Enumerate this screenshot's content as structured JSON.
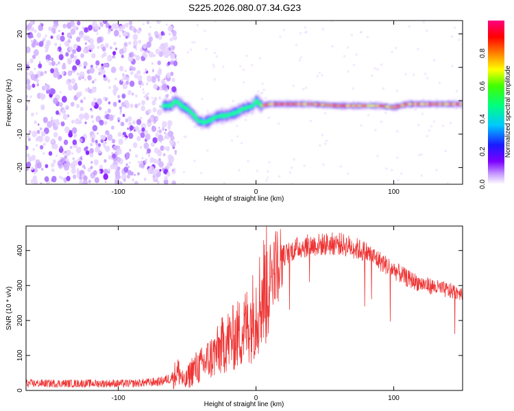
{
  "title": "S225.2026.080.07.34.G23",
  "spectrogram": {
    "type": "heatmap",
    "xlabel": "Height of straight line (km)",
    "ylabel": "Frequency (Hz)",
    "xlim": [
      -167,
      150
    ],
    "ylim": [
      -25,
      24
    ],
    "xticks": [
      -100,
      0,
      100
    ],
    "xtick_labels": [
      "-100",
      "0",
      "100"
    ],
    "yticks": [
      -20,
      -10,
      0,
      10,
      20
    ],
    "ytick_labels": [
      "-20",
      "-10",
      "0",
      "10",
      "20"
    ],
    "ridge": {
      "description": "dominant frequency track",
      "x": [
        -67,
        -62,
        -58,
        -54,
        -50,
        -46,
        -42,
        -38,
        -34,
        -30,
        -26,
        -22,
        -18,
        -14,
        -10,
        -6,
        -2,
        0,
        4,
        10,
        20,
        40,
        60,
        80,
        90,
        100,
        110,
        130,
        150
      ],
      "freq": [
        -1.5,
        -1.5,
        0,
        -1.5,
        -2.5,
        -4,
        -6,
        -6.5,
        -6,
        -5,
        -4.5,
        -4.5,
        -4,
        -3.5,
        -2.5,
        -2,
        -1.5,
        0,
        -1.5,
        -1,
        -1,
        -1,
        -1.5,
        -1.5,
        -1.5,
        -2,
        -1,
        -1,
        -1
      ]
    }
  },
  "colorbar": {
    "label": "Normalized spectral amplitude",
    "range": [
      0,
      1
    ],
    "ticks": [
      0.0,
      0.2,
      0.4,
      0.6,
      0.8
    ],
    "tick_labels": [
      "0.0",
      "0.2",
      "0.4",
      "0.6",
      "0.8"
    ]
  },
  "snr_chart": {
    "type": "line",
    "xlabel": "Height of straight line (km)",
    "ylabel": "SNR (10 * v/v)",
    "xlim": [
      -167,
      150
    ],
    "ylim": [
      0,
      470
    ],
    "xticks": [
      -100,
      0,
      100
    ],
    "xtick_labels": [
      "-100",
      "0",
      "100"
    ],
    "yticks": [
      0,
      100,
      200,
      300,
      400
    ],
    "ytick_labels": [
      "0",
      "100",
      "200",
      "300",
      "400"
    ],
    "color": "#ee3333",
    "series": {
      "name": "SNR",
      "x": [
        -167,
        -150,
        -130,
        -110,
        -90,
        -70,
        -62,
        -56,
        -52,
        -46,
        -40,
        -34,
        -28,
        -22,
        -16,
        -10,
        -4,
        2,
        8,
        14,
        20,
        26,
        32,
        40,
        50,
        60,
        70,
        80,
        90,
        100,
        110,
        120,
        130,
        140,
        150
      ],
      "y": [
        20,
        20,
        20,
        20,
        20,
        25,
        35,
        55,
        20,
        60,
        70,
        90,
        110,
        140,
        150,
        170,
        200,
        250,
        310,
        360,
        385,
        400,
        410,
        415,
        418,
        420,
        410,
        395,
        370,
        345,
        320,
        305,
        295,
        285,
        280
      ]
    }
  }
}
